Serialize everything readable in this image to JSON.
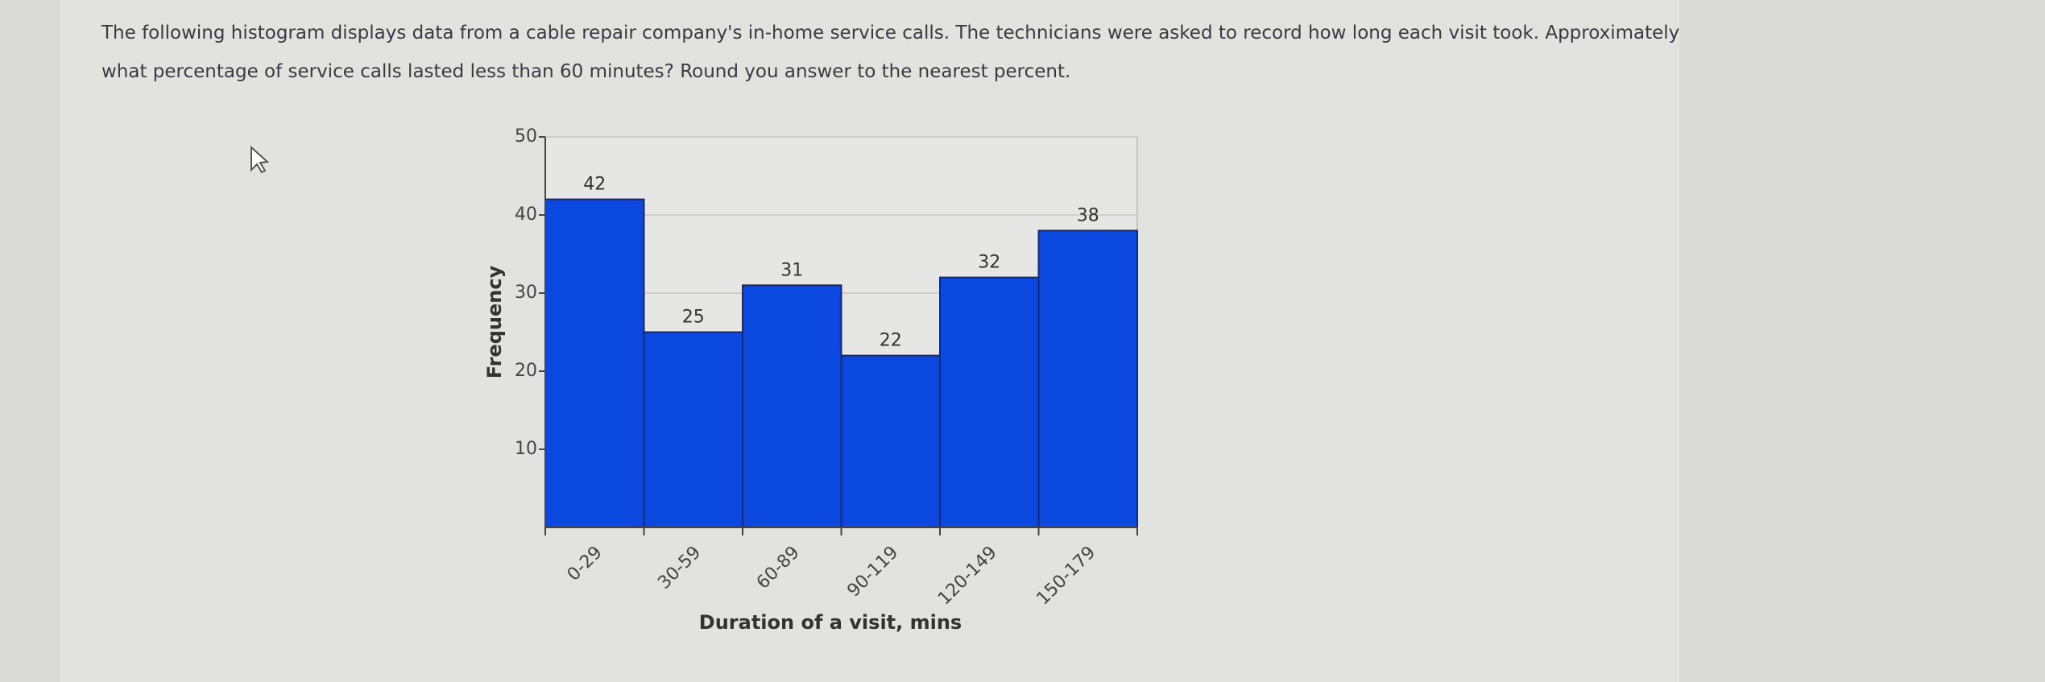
{
  "question": {
    "line1": "The following histogram displays data from a cable repair company's in-home service calls. The technicians were asked to record how long each visit took. Approximately",
    "line2": "what percentage of service calls lasted less than 60 minutes? Round you answer to the nearest percent."
  },
  "chart_data": {
    "type": "bar",
    "x_label": "Duration of a visit, mins",
    "y_label": "Frequency",
    "categories": [
      "0-29",
      "30-59",
      "60-89",
      "90-119",
      "120-149",
      "150-179"
    ],
    "values": [
      42,
      25,
      31,
      22,
      32,
      38
    ],
    "color": "#0b48df",
    "ylim": [
      0,
      50
    ],
    "yticks": [
      10,
      20,
      30,
      40,
      50
    ],
    "grid": true
  }
}
